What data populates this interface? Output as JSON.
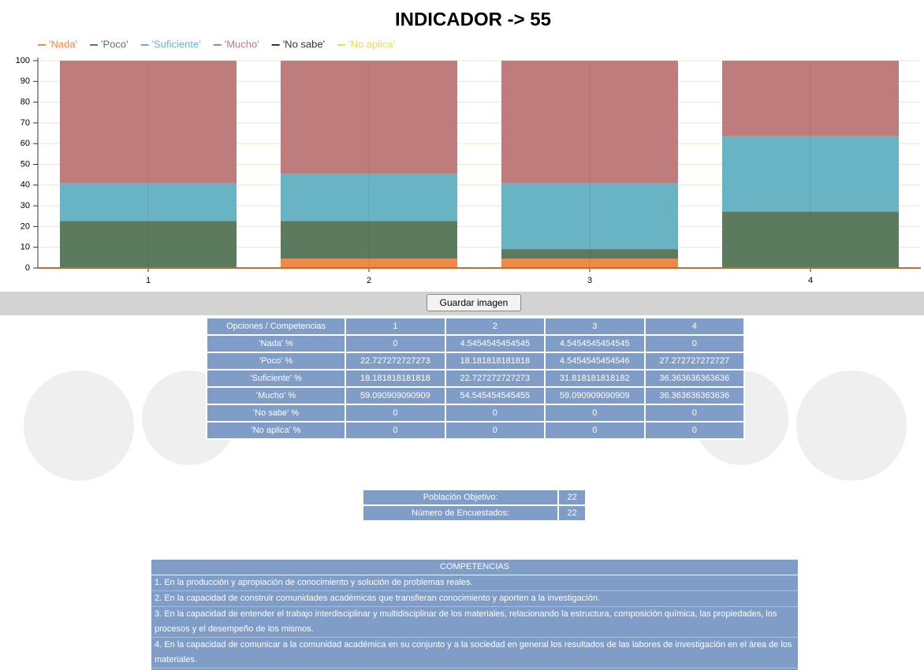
{
  "chart_data": {
    "type": "bar",
    "stacked": true,
    "title": "INDICADOR -> 55",
    "categories": [
      "1",
      "2",
      "3",
      "4"
    ],
    "series": [
      {
        "name": "'Nada'",
        "color": "#f0884a",
        "values": [
          0,
          4.5454545454545,
          4.5454545454545,
          0
        ]
      },
      {
        "name": "'Poco'",
        "color": "#5c7a5e",
        "values": [
          22.727272727273,
          18.181818181818,
          4.5454545454546,
          27.272727272727
        ]
      },
      {
        "name": "'Suficiente'",
        "color": "#68b4c4",
        "values": [
          18.181818181818,
          22.727272727273,
          31.818181818182,
          36.363636363636
        ]
      },
      {
        "name": "'Mucho'",
        "color": "#bf7c7c",
        "values": [
          59.090909090909,
          54.545454545455,
          59.090909090909,
          36.363636363636
        ]
      },
      {
        "name": "'No sabe'",
        "color": "#333333",
        "values": [
          0,
          0,
          0,
          0
        ]
      },
      {
        "name": "'No aplica'",
        "color": "#e3dd5c",
        "values": [
          0,
          0,
          0,
          0
        ]
      }
    ],
    "ylim": [
      0,
      100
    ],
    "yticks": [
      0,
      10,
      20,
      30,
      40,
      50,
      60,
      70,
      80,
      90,
      100
    ],
    "grid": true,
    "legend": "top-left"
  },
  "button": "Guardar imagen",
  "results_table": {
    "header": "Opciones / Competencias",
    "row_labels": [
      "'Nada' %",
      "'Poco' %",
      "'Suficiente' %",
      "'Mucho' %",
      "'No sabe' %",
      "'No aplica' %"
    ]
  },
  "population_table": {
    "rows": [
      [
        "Población Objetivo:",
        "22"
      ],
      [
        "Número de Encuestados:",
        "22"
      ]
    ]
  },
  "competencias": {
    "title": "COMPETENCIAS",
    "items": [
      "1. En la producción y apropiación de conocimiento y solución de problemas reales.",
      "2. En la capacidad de construir comunidades académicas que transfieran conocimiento y aporten a la investigación.",
      "3. En la capacidad de entender el trabajo interdisciplinar y multidisciplinar de los materiales, relacionando la estructura, composición química, las propiedades, los procesos y el desempeño de los mismos.",
      "4. En la capacidad de comunicar a la comunidad académica en su conjunto y a la sociedad en general los resultados de las labores de investigación en el área de los materiales."
    ]
  }
}
